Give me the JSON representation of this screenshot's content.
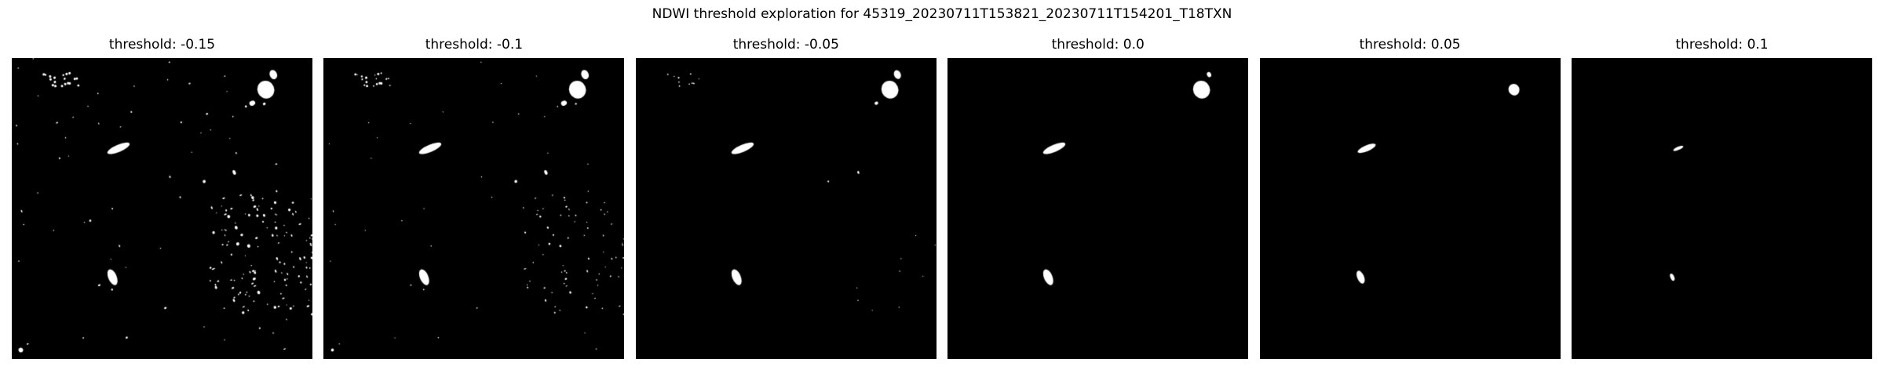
{
  "figure": {
    "title": "NDWI threshold exploration for 45319_20230711T153821_20230711T154201_T18TXN"
  },
  "chart_data": {
    "type": "heatmap",
    "title": "NDWI threshold exploration for 45319_20230711T153821_20230711T154201_T18TXN",
    "colormap": [
      "#000000",
      "#ffffff"
    ],
    "panels": [
      {
        "threshold": -0.15,
        "title": "threshold: -0.15"
      },
      {
        "threshold": -0.1,
        "title": "threshold: -0.1"
      },
      {
        "threshold": -0.05,
        "title": "threshold: -0.05"
      },
      {
        "threshold": 0.0,
        "title": "threshold: 0.0"
      },
      {
        "threshold": 0.05,
        "title": "threshold: 0.05"
      },
      {
        "threshold": 0.1,
        "title": "threshold: 0.1"
      }
    ]
  }
}
